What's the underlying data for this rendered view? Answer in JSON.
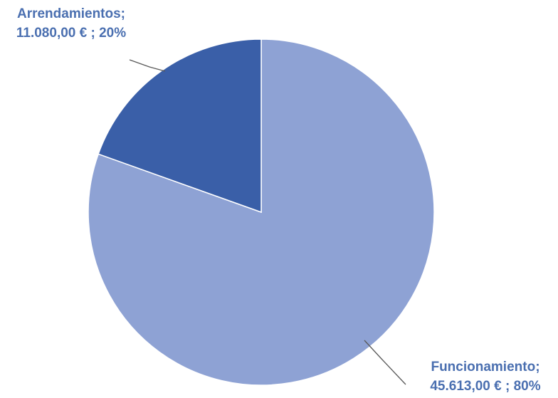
{
  "chart_data": {
    "type": "pie",
    "title": "",
    "slices": [
      {
        "category": "Funcionamiento;",
        "value_text": "45.613,00 € ; 80%",
        "value": 45613.0,
        "percent": 80,
        "color": "#8ea2d4"
      },
      {
        "category": "Arrendamientos;",
        "value_text": "11.080,00 € ; 20%",
        "value": 11080.0,
        "percent": 20,
        "color": "#3a5fa8"
      }
    ],
    "label_color": "#4a6fb0",
    "legend": "none"
  }
}
